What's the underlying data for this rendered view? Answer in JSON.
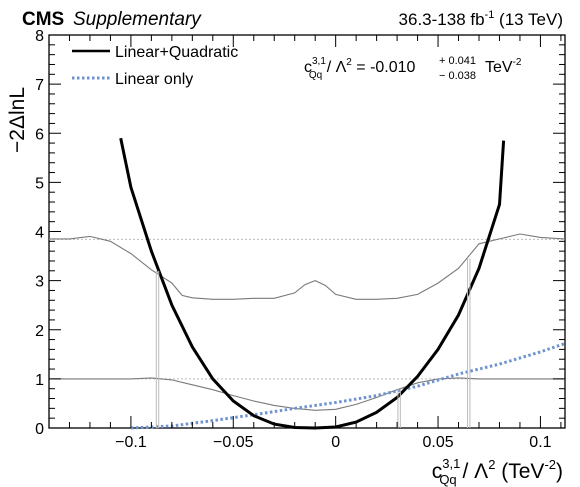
{
  "header": {
    "experiment": "CMS",
    "tag": "Supplementary",
    "lumi_prefix": "36.3-138 fb",
    "lumi_exp": "-1",
    "lumi_suffix": " (13 TeV)"
  },
  "result": {
    "c": "c",
    "c_sup": "3,1",
    "c_sub": "Qq",
    "mid": " / Λ",
    "mid_sup": "2",
    "eq": " = -0.010",
    "up": "+ 0.041",
    "down": "− 0.038",
    "unit": "TeV",
    "unit_sup": "-2"
  },
  "xlabel": {
    "c": "c",
    "c_sup": "3,1",
    "c_sub": "Qq",
    "mid": " / Λ",
    "mid_sup": "2",
    "unit_open": " (TeV",
    "unit_sup": "-2",
    "unit_close": ")"
  },
  "ylabel": "−2ΔlnL",
  "colors": {
    "lin_quad": "#000000",
    "lin_only": "#6f93cf",
    "profiles": "#7a7a7a",
    "ref_lines": "#bbbbbb"
  },
  "chart_data": {
    "type": "line",
    "xlim": [
      -0.14,
      0.112
    ],
    "ylim": [
      0,
      8
    ],
    "x_ticks": [
      -0.1,
      -0.05,
      0,
      0.05,
      0.1
    ],
    "x_tick_labels": [
      "−0.1",
      "−0.05",
      "0",
      "0.05",
      "0.1"
    ],
    "y_ticks": [
      0,
      1,
      2,
      3,
      4,
      5,
      6,
      7,
      8
    ],
    "y_tick_labels": [
      "0",
      "1",
      "2",
      "3",
      "4",
      "5",
      "6",
      "7",
      "8"
    ],
    "legend_position": "top-left",
    "reference_levels": [
      1,
      3.84
    ],
    "series": [
      {
        "name": "Linear+Quadratic",
        "style": "solid",
        "x": [
          -0.105,
          -0.1,
          -0.09,
          -0.08,
          -0.07,
          -0.06,
          -0.05,
          -0.04,
          -0.03,
          -0.02,
          -0.01,
          0,
          0.01,
          0.02,
          0.03,
          0.04,
          0.05,
          0.06,
          0.07,
          0.08,
          0.082
        ],
        "y": [
          5.9,
          4.9,
          3.6,
          2.5,
          1.65,
          1.0,
          0.55,
          0.25,
          0.08,
          0.01,
          0.0,
          0.02,
          0.12,
          0.32,
          0.62,
          1.05,
          1.6,
          2.3,
          3.25,
          4.55,
          5.85
        ]
      },
      {
        "name": "Linear only",
        "style": "dotted",
        "x": [
          -0.1,
          -0.08,
          -0.06,
          -0.04,
          -0.02,
          0,
          0.02,
          0.04,
          0.06,
          0.08,
          0.1,
          0.112
        ],
        "y": [
          0.0,
          0.04,
          0.15,
          0.27,
          0.4,
          0.52,
          0.66,
          0.85,
          1.1,
          1.3,
          1.55,
          1.72
        ]
      },
      {
        "style": "thin",
        "x": [
          -0.14,
          -0.13,
          -0.12,
          -0.11,
          -0.1,
          -0.09,
          -0.08,
          -0.075,
          -0.07,
          -0.06,
          -0.05,
          -0.04,
          -0.03,
          -0.02,
          -0.015,
          -0.01,
          -0.005,
          0,
          0.01,
          0.02,
          0.03,
          0.04,
          0.05,
          0.06,
          0.065,
          0.07,
          0.08,
          0.09,
          0.1,
          0.112
        ],
        "y": [
          3.85,
          3.85,
          3.9,
          3.8,
          3.55,
          3.22,
          2.95,
          2.7,
          2.65,
          2.62,
          2.62,
          2.64,
          2.64,
          2.75,
          2.92,
          3.0,
          2.9,
          2.72,
          2.62,
          2.62,
          2.64,
          2.72,
          2.95,
          3.25,
          3.5,
          3.75,
          3.85,
          3.95,
          3.88,
          3.85
        ]
      },
      {
        "style": "thin",
        "x": [
          -0.14,
          -0.12,
          -0.1,
          -0.09,
          -0.08,
          -0.07,
          -0.06,
          -0.05,
          -0.04,
          -0.03,
          -0.02,
          -0.01,
          0,
          0.01,
          0.02,
          0.03,
          0.04,
          0.05,
          0.06,
          0.07,
          0.08,
          0.09,
          0.1,
          0.112
        ],
        "y": [
          1.0,
          1.0,
          1.0,
          1.02,
          0.98,
          0.88,
          0.78,
          0.66,
          0.55,
          0.46,
          0.4,
          0.36,
          0.38,
          0.48,
          0.62,
          0.78,
          0.92,
          1.0,
          1.02,
          1.0,
          1.0,
          1.0,
          1.0,
          1.0
        ]
      }
    ],
    "interval_markers": [
      {
        "x": -0.087,
        "y": 3.2
      },
      {
        "x": 0.031,
        "y": 0.8
      },
      {
        "x": 0.065,
        "y": 3.45
      }
    ]
  }
}
